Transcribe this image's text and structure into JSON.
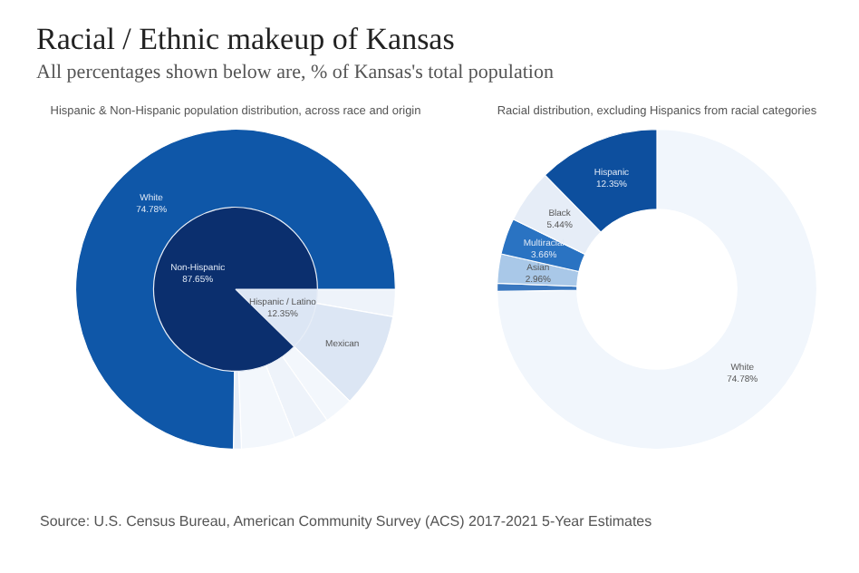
{
  "chart_data": [
    {
      "type": "other",
      "title": "Racial / Ethnic makeup of Kansas",
      "subtitle": "All percentages shown below are, % of Kansas's total population",
      "annotations": [
        "Source: U.S. Census Bureau, American Community Survey (ACS) 2017-2021 5-Year Estimates"
      ]
    },
    {
      "type": "donut",
      "title": "Hispanic & Non-Hispanic population distribution, across race and origin",
      "legend": false,
      "categories": [
        null,
        "Mexican",
        null,
        null,
        null,
        null,
        "White"
      ],
      "values": [
        2.75,
        9.6,
        2.96,
        3.66,
        5.44,
        0.81,
        74.78
      ],
      "colors": [
        "#eef3fa",
        "#dce6f4",
        "#f3f7fc",
        "#eef3fa",
        "#f3f7fc",
        "#e6eef8",
        "#0f57a8"
      ],
      "value_labels": [
        null,
        null,
        null,
        null,
        null,
        null,
        "74.78%"
      ]
    },
    {
      "type": "pie",
      "legend": false,
      "categories": [
        "Hispanic / Latino",
        "Non-Hispanic"
      ],
      "values": [
        12.35,
        87.65
      ],
      "colors": [
        "#dce6f4",
        "#0b2f6e"
      ],
      "value_labels": [
        "12.35%",
        "87.65%"
      ]
    },
    {
      "type": "donut",
      "title": "Racial distribution, excluding Hispanics from racial categories",
      "legend": false,
      "categories": [
        "White",
        null,
        "Asian",
        "Multiracial",
        "Black",
        "Hispanic"
      ],
      "values": [
        74.78,
        0.81,
        2.96,
        3.66,
        5.44,
        12.35
      ],
      "colors": [
        "#f1f6fc",
        "#3a78c0",
        "#a9c8e8",
        "#2a73c2",
        "#e6edf7",
        "#0d4f9e"
      ],
      "value_labels": [
        "74.78%",
        null,
        "2.96%",
        "3.66%",
        "5.44%",
        "12.35%"
      ]
    }
  ]
}
